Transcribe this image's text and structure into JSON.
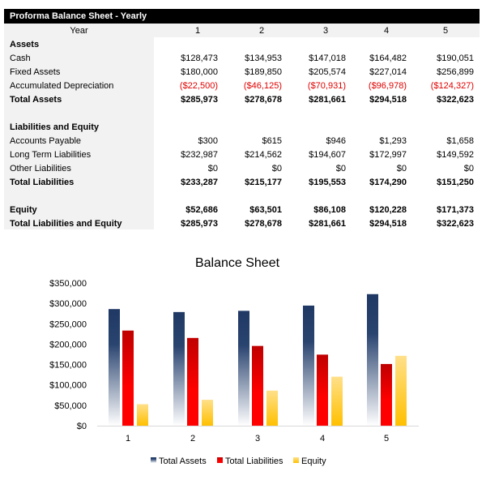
{
  "table": {
    "title": "Proforma Balance Sheet - Yearly",
    "year_label": "Year",
    "years": [
      "1",
      "2",
      "3",
      "4",
      "5"
    ],
    "rows": [
      {
        "label": "Assets",
        "bold": true,
        "values": []
      },
      {
        "label": "Cash",
        "values": [
          "$128,473",
          "$134,953",
          "$147,018",
          "$164,482",
          "$190,051"
        ]
      },
      {
        "label": "Fixed Assets",
        "values": [
          "$180,000",
          "$189,850",
          "$205,574",
          "$227,014",
          "$256,899"
        ]
      },
      {
        "label": "Accumulated Depreciation",
        "negative": true,
        "values": [
          "($22,500)",
          "($46,125)",
          "($70,931)",
          "($96,978)",
          "($124,327)"
        ]
      },
      {
        "label": "Total Assets",
        "bold": true,
        "values": [
          "$285,973",
          "$278,678",
          "$281,661",
          "$294,518",
          "$322,623"
        ]
      },
      {
        "label": "",
        "values": []
      },
      {
        "label": "Liabilities and Equity",
        "bold": true,
        "values": []
      },
      {
        "label": "Accounts Payable",
        "values": [
          "$300",
          "$615",
          "$946",
          "$1,293",
          "$1,658"
        ]
      },
      {
        "label": "Long Term Liabilities",
        "values": [
          "$232,987",
          "$214,562",
          "$194,607",
          "$172,997",
          "$149,592"
        ]
      },
      {
        "label": "Other Liabilities",
        "values": [
          "$0",
          "$0",
          "$0",
          "$0",
          "$0"
        ]
      },
      {
        "label": "Total Liabilities",
        "bold": true,
        "values": [
          "$233,287",
          "$215,177",
          "$195,553",
          "$174,290",
          "$151,250"
        ]
      },
      {
        "label": "",
        "values": []
      },
      {
        "label": "Equity",
        "bold": true,
        "values": [
          "$52,686",
          "$63,501",
          "$86,108",
          "$120,228",
          "$171,373"
        ]
      },
      {
        "label": "Total Liabilities and Equity",
        "bold": true,
        "values": [
          "$285,973",
          "$278,678",
          "$281,661",
          "$294,518",
          "$322,623"
        ]
      }
    ]
  },
  "chart_data": {
    "type": "bar",
    "title": "Balance Sheet",
    "categories": [
      "1",
      "2",
      "3",
      "4",
      "5"
    ],
    "ylim": [
      0,
      350000
    ],
    "yticks": [
      "$0",
      "$50,000",
      "$100,000",
      "$150,000",
      "$200,000",
      "$250,000",
      "$300,000",
      "$350,000"
    ],
    "grid": false,
    "legend": "bottom",
    "series": [
      {
        "name": "Total Assets",
        "values": [
          285973,
          278678,
          281661,
          294518,
          322623
        ],
        "color": "#1f3864"
      },
      {
        "name": "Total Liabilities",
        "values": [
          233287,
          215177,
          195553,
          174290,
          151250
        ],
        "color": "#ff0000"
      },
      {
        "name": "Equity",
        "values": [
          52686,
          63501,
          86108,
          120228,
          171373
        ],
        "color": "#ffc000"
      }
    ]
  }
}
